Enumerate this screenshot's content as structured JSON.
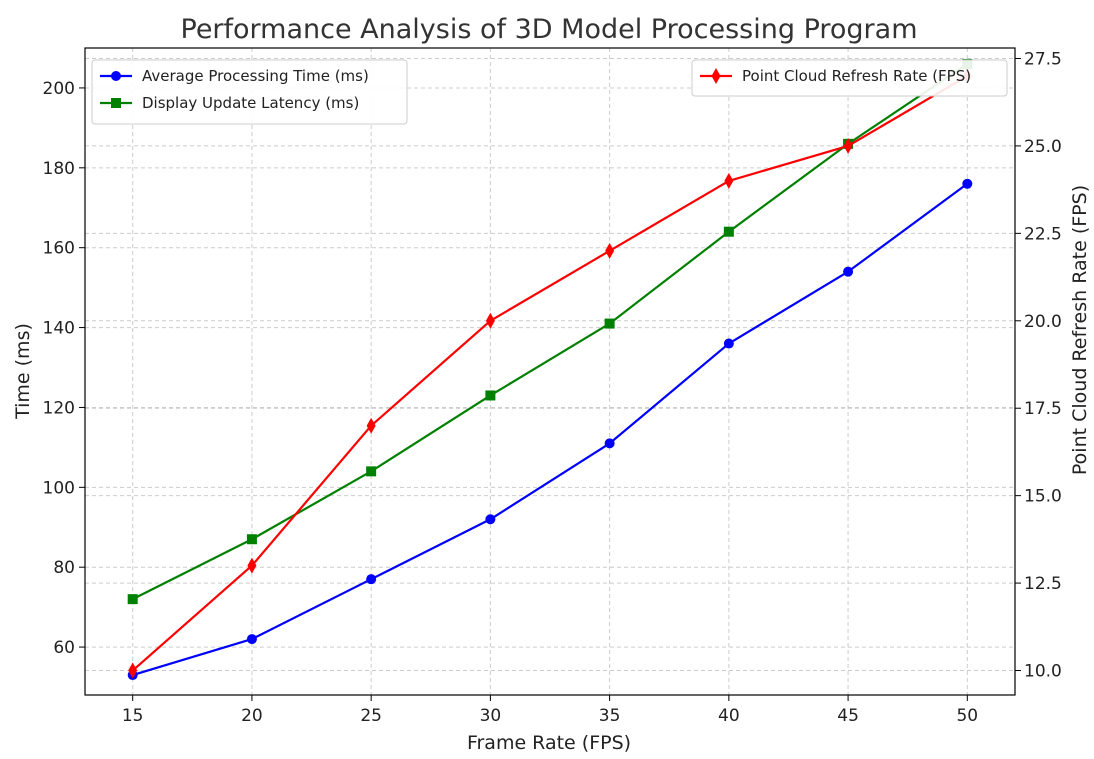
{
  "chart_data": {
    "type": "line",
    "title": "Performance Analysis of 3D Model Processing Program",
    "xlabel": "Frame Rate (FPS)",
    "ylabel": "Time (ms)",
    "y2label": "Point Cloud Refresh Rate (FPS)",
    "x": [
      15,
      20,
      25,
      30,
      35,
      40,
      45,
      50
    ],
    "x_ticks": [
      "15",
      "20",
      "25",
      "30",
      "35",
      "40",
      "45",
      "50"
    ],
    "xlim": [
      13,
      52
    ],
    "ylim": [
      48,
      210
    ],
    "y_ticks": [
      "60",
      "80",
      "100",
      "120",
      "140",
      "160",
      "180",
      "200"
    ],
    "y2lim": [
      9.3,
      27.8
    ],
    "y2_ticks": [
      "10.0",
      "12.5",
      "15.0",
      "17.5",
      "20.0",
      "22.5",
      "25.0",
      "27.5"
    ],
    "grid": true,
    "series": [
      {
        "name": "Average Processing Time (ms)",
        "axis": "left",
        "color": "#0000ff",
        "marker": "circle",
        "values": [
          53,
          62,
          77,
          92,
          111,
          136,
          154,
          176
        ]
      },
      {
        "name": "Display Update Latency (ms)",
        "axis": "left",
        "color": "#008000",
        "marker": "square",
        "values": [
          72,
          87,
          104,
          123,
          141,
          164,
          186,
          206
        ]
      },
      {
        "name": "Point Cloud Refresh Rate (FPS)",
        "axis": "right",
        "color": "#ff0000",
        "marker": "diamond",
        "values": [
          10,
          13,
          17,
          20,
          22,
          24,
          25,
          27
        ]
      }
    ],
    "legend": [
      {
        "position": "top-left",
        "entries": [
          "Average Processing Time (ms)",
          "Display Update Latency (ms)"
        ]
      },
      {
        "position": "top-right",
        "entries": [
          "Point Cloud Refresh Rate (FPS)"
        ]
      }
    ]
  }
}
